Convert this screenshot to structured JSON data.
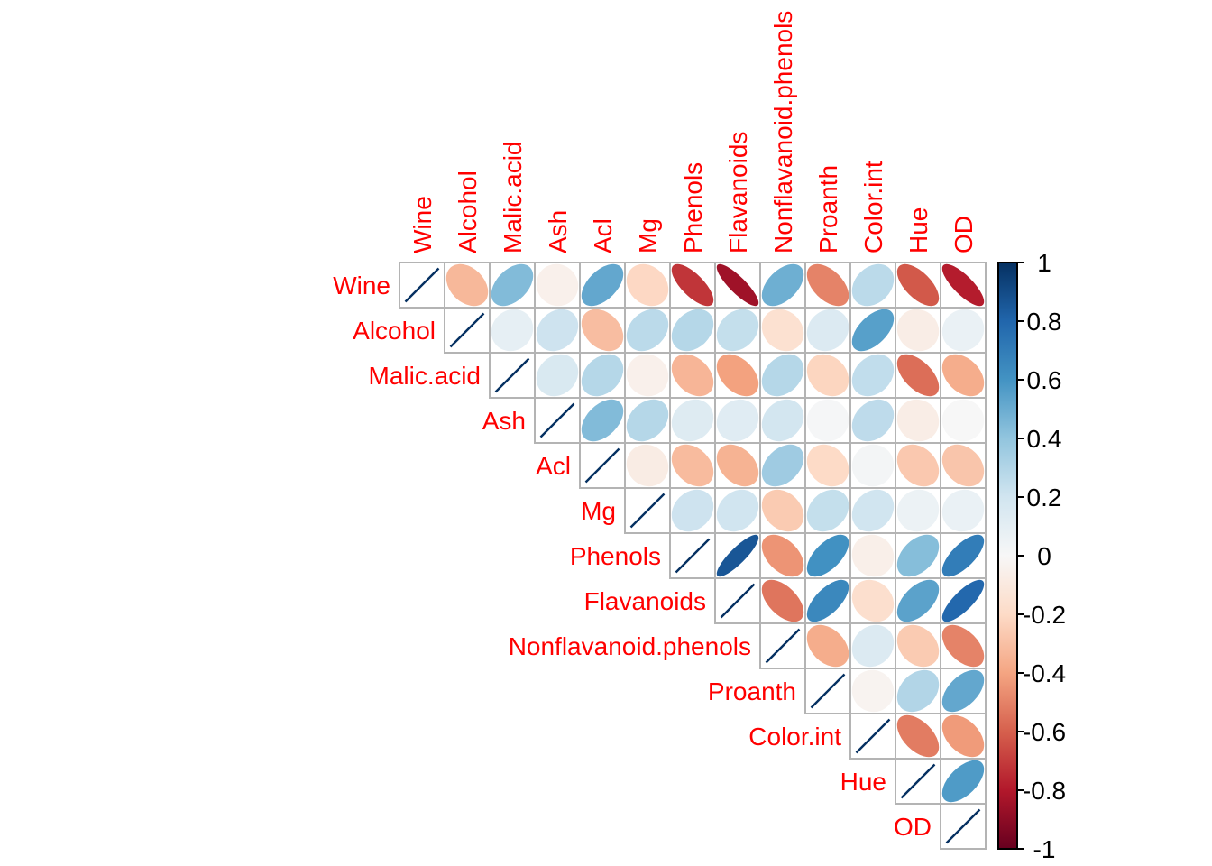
{
  "figure": {
    "background": "#ffffff"
  },
  "chart_data": {
    "type": "heatmap",
    "subtype": "correlation-matrix-ellipse-upper-triangle",
    "title": "",
    "variables": [
      "Wine",
      "Alcohol",
      "Malic.acid",
      "Ash",
      "Acl",
      "Mg",
      "Phenols",
      "Flavanoids",
      "Nonflavanoid.phenols",
      "Proanth",
      "Color.int",
      "Hue",
      "OD"
    ],
    "matrix": [
      [
        1.0,
        -0.33,
        0.44,
        -0.05,
        0.52,
        -0.21,
        -0.72,
        -0.85,
        0.49,
        -0.5,
        0.27,
        -0.62,
        -0.79
      ],
      [
        -0.33,
        1.0,
        0.09,
        0.21,
        -0.31,
        0.27,
        0.29,
        0.24,
        -0.16,
        0.14,
        0.55,
        -0.07,
        0.07
      ],
      [
        0.44,
        0.09,
        1.0,
        0.16,
        0.29,
        -0.05,
        -0.34,
        -0.41,
        0.29,
        -0.22,
        0.25,
        -0.56,
        -0.37
      ],
      [
        -0.05,
        0.21,
        0.16,
        1.0,
        0.44,
        0.29,
        0.13,
        0.12,
        0.19,
        0.01,
        0.26,
        -0.07,
        0.0
      ],
      [
        0.52,
        -0.31,
        0.29,
        0.44,
        1.0,
        -0.08,
        -0.32,
        -0.35,
        0.36,
        -0.2,
        0.02,
        -0.27,
        -0.28
      ],
      [
        -0.21,
        0.27,
        -0.05,
        0.29,
        -0.08,
        1.0,
        0.21,
        0.2,
        -0.26,
        0.24,
        0.2,
        0.06,
        0.07
      ],
      [
        -0.72,
        0.29,
        -0.34,
        0.13,
        -0.32,
        0.21,
        1.0,
        0.86,
        -0.45,
        0.61,
        -0.06,
        0.43,
        0.7
      ],
      [
        -0.85,
        0.24,
        -0.41,
        0.12,
        -0.35,
        0.2,
        0.86,
        1.0,
        -0.54,
        0.65,
        -0.17,
        0.54,
        0.79
      ],
      [
        0.49,
        -0.16,
        0.29,
        0.19,
        0.36,
        -0.26,
        -0.45,
        -0.54,
        1.0,
        -0.37,
        0.14,
        -0.26,
        -0.5
      ],
      [
        -0.5,
        0.14,
        -0.22,
        0.01,
        -0.2,
        0.24,
        0.61,
        0.65,
        -0.37,
        1.0,
        -0.03,
        0.3,
        0.52
      ],
      [
        0.27,
        0.55,
        0.25,
        0.26,
        0.02,
        0.2,
        -0.06,
        -0.17,
        0.14,
        -0.03,
        1.0,
        -0.52,
        -0.43
      ],
      [
        -0.62,
        -0.07,
        -0.56,
        -0.07,
        -0.27,
        0.06,
        0.43,
        0.54,
        -0.26,
        0.3,
        -0.52,
        1.0,
        0.57
      ],
      [
        -0.79,
        0.07,
        -0.37,
        0.0,
        -0.28,
        0.07,
        0.7,
        0.79,
        -0.5,
        0.52,
        -0.43,
        0.57,
        1.0
      ]
    ],
    "value_range": [
      -1,
      1
    ],
    "label_color": "#ff0000",
    "grid_color": "#b4b4b4",
    "cell_fill": "#ffffff",
    "diagonal_line_color": "#053061",
    "colormap": {
      "name": "RdBu",
      "stops": [
        {
          "v": -1.0,
          "c": "#67001F"
        },
        {
          "v": -0.8,
          "c": "#B2182B"
        },
        {
          "v": -0.6,
          "c": "#D6604D"
        },
        {
          "v": -0.4,
          "c": "#F4A582"
        },
        {
          "v": -0.2,
          "c": "#FDDBC7"
        },
        {
          "v": 0.0,
          "c": "#F7F7F7"
        },
        {
          "v": 0.2,
          "c": "#D1E5F0"
        },
        {
          "v": 0.4,
          "c": "#92C5DE"
        },
        {
          "v": 0.6,
          "c": "#4393C3"
        },
        {
          "v": 0.8,
          "c": "#2166AC"
        },
        {
          "v": 1.0,
          "c": "#053061"
        }
      ]
    },
    "colorbar": {
      "position": "right",
      "range": [
        -1,
        1
      ],
      "border_color": "#000000",
      "tick_color": "#000000",
      "text_color": "#000000",
      "ticks": [
        {
          "label": "1",
          "value": 1.0
        },
        {
          "label": "0.8",
          "value": 0.8
        },
        {
          "label": "0.6",
          "value": 0.6
        },
        {
          "label": "0.4",
          "value": 0.4
        },
        {
          "label": "0.2",
          "value": 0.2
        },
        {
          "label": "0",
          "value": 0.0
        },
        {
          "label": "-0.2",
          "value": -0.2
        },
        {
          "label": "-0.4",
          "value": -0.4
        },
        {
          "label": "-0.6",
          "value": -0.6
        },
        {
          "label": "-0.8",
          "value": -0.8
        },
        {
          "label": "-1",
          "value": -1.0
        }
      ]
    }
  }
}
